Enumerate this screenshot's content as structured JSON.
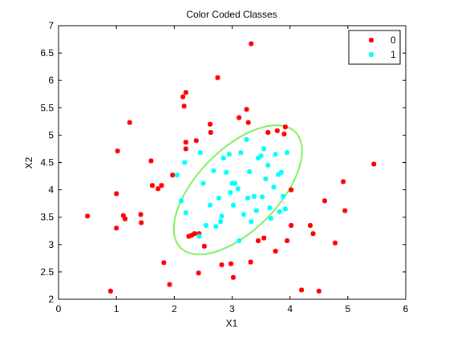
{
  "chart_data": {
    "type": "scatter",
    "title": "Color Coded Classes",
    "xlabel": "X1",
    "ylabel": "X2",
    "xlim": [
      0,
      6
    ],
    "ylim": [
      2,
      7
    ],
    "xticks": [
      0,
      1,
      2,
      3,
      4,
      5,
      6
    ],
    "yticks": [
      2,
      2.5,
      3,
      3.5,
      4,
      4.5,
      5,
      5.5,
      6,
      6.5,
      7
    ],
    "grid": false,
    "legend_position": "top-right",
    "series": [
      {
        "name": "0",
        "color": "#ff0000",
        "marker": "asterisk",
        "points": [
          [
            0.5,
            3.52
          ],
          [
            0.9,
            2.15
          ],
          [
            1.0,
            3.3
          ],
          [
            1.0,
            3.93
          ],
          [
            1.02,
            4.71
          ],
          [
            1.12,
            3.53
          ],
          [
            1.15,
            3.47
          ],
          [
            1.23,
            5.23
          ],
          [
            1.42,
            3.55
          ],
          [
            1.43,
            3.4
          ],
          [
            1.6,
            4.53
          ],
          [
            1.62,
            4.08
          ],
          [
            1.72,
            4.02
          ],
          [
            1.78,
            4.08
          ],
          [
            1.82,
            2.67
          ],
          [
            1.92,
            2.27
          ],
          [
            1.97,
            4.27
          ],
          [
            2.15,
            5.7
          ],
          [
            2.17,
            5.53
          ],
          [
            2.2,
            5.78
          ],
          [
            2.2,
            4.87
          ],
          [
            2.2,
            4.75
          ],
          [
            2.25,
            3.15
          ],
          [
            2.3,
            3.17
          ],
          [
            2.35,
            3.2
          ],
          [
            2.38,
            4.9
          ],
          [
            2.42,
            2.48
          ],
          [
            2.43,
            3.2
          ],
          [
            2.52,
            2.97
          ],
          [
            2.62,
            5.2
          ],
          [
            2.63,
            5.05
          ],
          [
            2.75,
            6.05
          ],
          [
            2.82,
            2.63
          ],
          [
            2.98,
            2.65
          ],
          [
            3.02,
            2.4
          ],
          [
            3.12,
            5.32
          ],
          [
            3.25,
            5.47
          ],
          [
            3.28,
            5.23
          ],
          [
            3.32,
            2.68
          ],
          [
            3.33,
            6.67
          ],
          [
            3.45,
            3.07
          ],
          [
            3.55,
            3.12
          ],
          [
            3.62,
            5.05
          ],
          [
            3.75,
            2.88
          ],
          [
            3.78,
            5.08
          ],
          [
            3.9,
            5.02
          ],
          [
            3.92,
            5.15
          ],
          [
            3.95,
            3.07
          ],
          [
            4.02,
            3.35
          ],
          [
            4.02,
            4.0
          ],
          [
            4.2,
            2.17
          ],
          [
            4.35,
            3.35
          ],
          [
            4.4,
            3.2
          ],
          [
            4.5,
            2.15
          ],
          [
            4.6,
            3.8
          ],
          [
            4.78,
            3.03
          ],
          [
            4.92,
            4.15
          ],
          [
            4.95,
            3.62
          ],
          [
            5.45,
            4.47
          ]
        ]
      },
      {
        "name": "1",
        "color": "#00ffff",
        "marker": "asterisk",
        "points": [
          [
            2.05,
            4.27
          ],
          [
            2.12,
            3.8
          ],
          [
            2.18,
            4.5
          ],
          [
            2.2,
            3.58
          ],
          [
            2.43,
            3.15
          ],
          [
            2.45,
            4.68
          ],
          [
            2.5,
            4.12
          ],
          [
            2.55,
            3.35
          ],
          [
            2.62,
            3.72
          ],
          [
            2.68,
            4.35
          ],
          [
            2.72,
            3.33
          ],
          [
            2.77,
            3.85
          ],
          [
            2.8,
            3.42
          ],
          [
            2.82,
            3.52
          ],
          [
            2.85,
            4.58
          ],
          [
            2.9,
            4.32
          ],
          [
            2.95,
            4.65
          ],
          [
            2.97,
            3.95
          ],
          [
            3.0,
            4.12
          ],
          [
            3.02,
            3.72
          ],
          [
            3.05,
            4.12
          ],
          [
            3.1,
            4.02
          ],
          [
            3.12,
            3.07
          ],
          [
            3.15,
            4.68
          ],
          [
            3.2,
            3.55
          ],
          [
            3.25,
            4.92
          ],
          [
            3.27,
            3.85
          ],
          [
            3.3,
            4.33
          ],
          [
            3.33,
            3.42
          ],
          [
            3.38,
            3.88
          ],
          [
            3.42,
            3.62
          ],
          [
            3.45,
            4.58
          ],
          [
            3.5,
            4.62
          ],
          [
            3.52,
            3.87
          ],
          [
            3.55,
            4.75
          ],
          [
            3.58,
            4.2
          ],
          [
            3.62,
            4.45
          ],
          [
            3.65,
            3.67
          ],
          [
            3.67,
            3.48
          ],
          [
            3.72,
            4.05
          ],
          [
            3.75,
            4.65
          ],
          [
            3.8,
            4.28
          ],
          [
            3.82,
            3.6
          ],
          [
            3.85,
            4.32
          ],
          [
            3.88,
            3.88
          ],
          [
            3.92,
            3.65
          ],
          [
            3.95,
            4.68
          ]
        ]
      }
    ],
    "annotations": [
      {
        "type": "ellipse",
        "color": "#7fef5f",
        "center": [
          3.1,
          4.0
        ],
        "semi_major": 1.45,
        "semi_minor": 0.72,
        "angle_deg": 48
      }
    ]
  }
}
